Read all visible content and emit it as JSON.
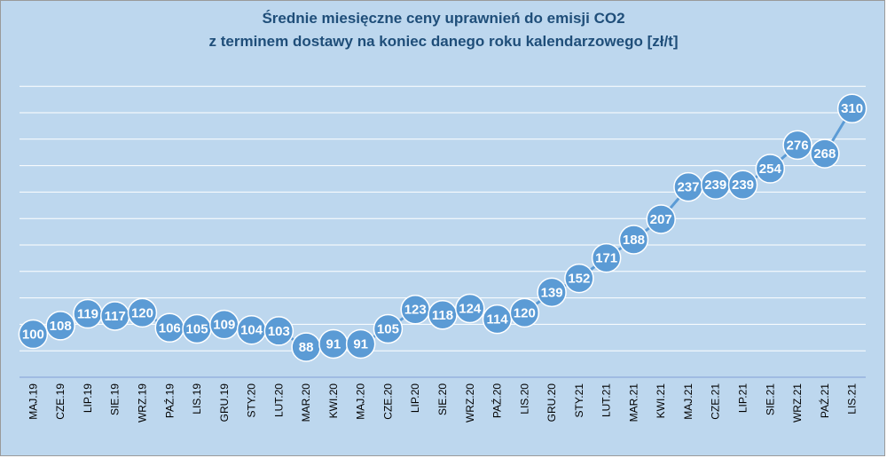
{
  "chart_data": {
    "type": "line",
    "title_line1": "Średnie miesięczne ceny uprawnień do emisji CO2",
    "title_line2": "z terminem dostawy na koniec danego roku kalendarzowego [zł/t]",
    "xlabel": "",
    "ylabel": "",
    "ylim": [
      60,
      330
    ],
    "grid": true,
    "legend": "none",
    "categories": [
      "MAJ.19",
      "CZE.19",
      "LIP.19",
      "SIE.19",
      "WRZ.19",
      "PAŹ.19",
      "LIS.19",
      "GRU.19",
      "STY.20",
      "LUT.20",
      "MAR.20",
      "KWI.20",
      "MAJ.20",
      "CZE.20",
      "LIP.20",
      "SIE.20",
      "WRZ.20",
      "PAŹ.20",
      "LIS.20",
      "GRU.20",
      "STY.21",
      "LUT.21",
      "MAR.21",
      "KWI.21",
      "MAJ.21",
      "CZE.21",
      "LIP.21",
      "SIE.21",
      "WRZ.21",
      "PAŹ.21",
      "LIS.21"
    ],
    "series": [
      {
        "values": [
          100,
          108,
          119,
          117,
          120,
          106,
          105,
          109,
          104,
          103,
          88,
          91,
          91,
          105,
          123,
          118,
          124,
          114,
          120,
          139,
          152,
          171,
          188,
          207,
          237,
          239,
          239,
          254,
          276,
          268,
          310
        ]
      }
    ],
    "colors": {
      "background": "#bdd7ee",
      "series": "#5b9bd5",
      "title": "#1f4e79",
      "grid": "#ffffff"
    }
  }
}
